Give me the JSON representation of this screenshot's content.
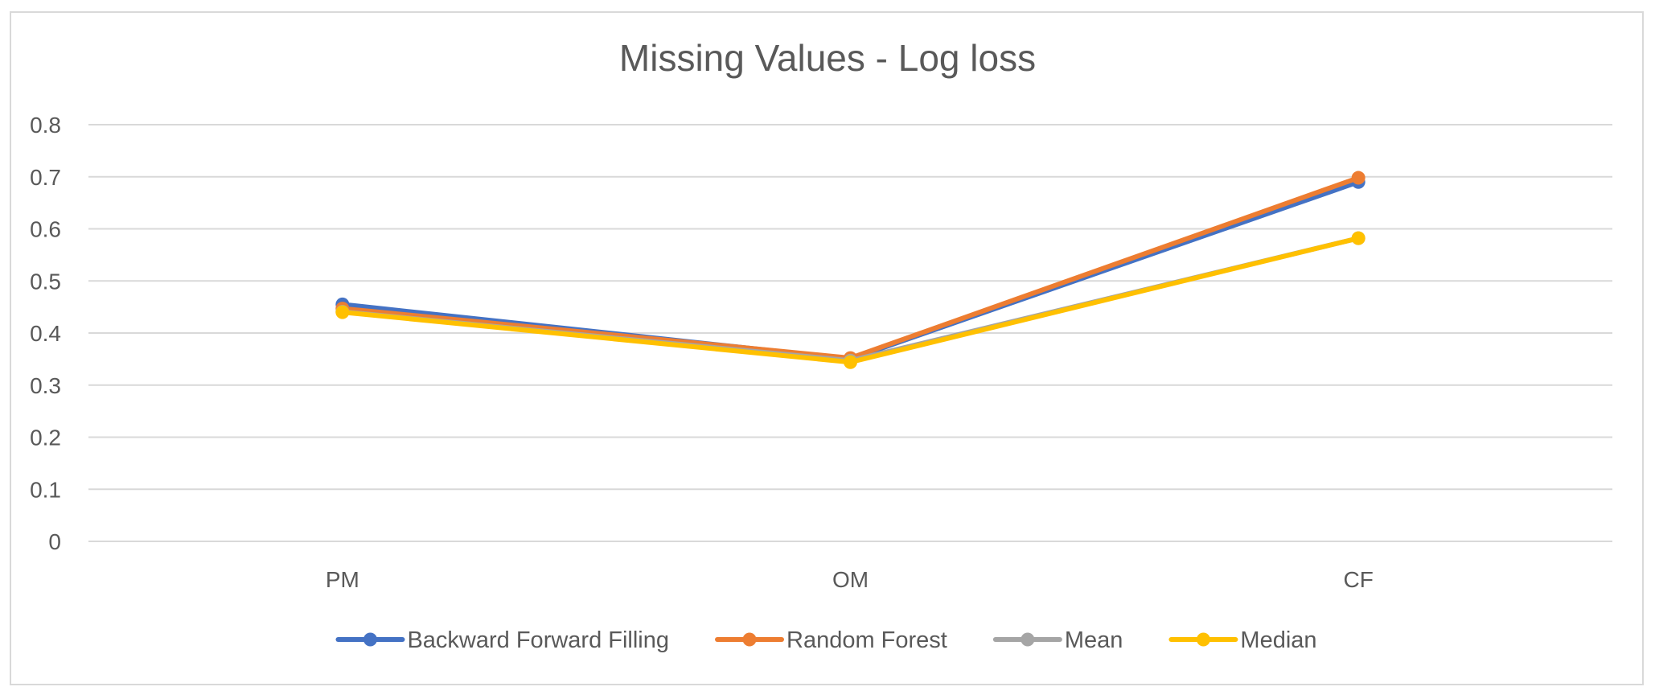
{
  "chart_data": {
    "type": "line",
    "title": "Missing Values - Log loss",
    "xlabel": "",
    "ylabel": "",
    "categories": [
      "PM",
      "OM",
      "CF"
    ],
    "ylim": [
      0,
      0.8
    ],
    "yticks": [
      0,
      0.1,
      0.2,
      0.3,
      0.4,
      0.5,
      0.6,
      0.7,
      0.8
    ],
    "ytick_labels": [
      "0",
      "0.1",
      "0.2",
      "0.3",
      "0.4",
      "0.5",
      "0.6",
      "0.7",
      "0.8"
    ],
    "grid": true,
    "legend_position": "bottom",
    "series": [
      {
        "name": "Backward Forward Filling",
        "color": "#4472C4",
        "values": [
          0.455,
          0.35,
          0.69
        ]
      },
      {
        "name": "Random Forest",
        "color": "#ED7D31",
        "values": [
          0.447,
          0.352,
          0.698
        ]
      },
      {
        "name": "Mean",
        "color": "#A5A5A5",
        "values": [
          0.441,
          0.347,
          0.582
        ]
      },
      {
        "name": "Median",
        "color": "#FFC000",
        "values": [
          0.44,
          0.344,
          0.582
        ]
      }
    ]
  }
}
